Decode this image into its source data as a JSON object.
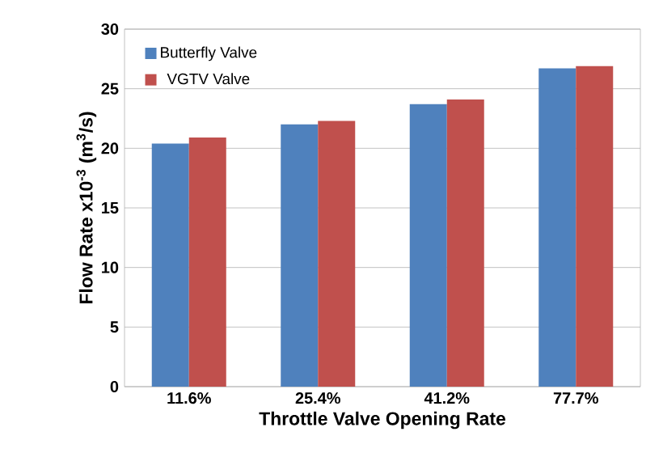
{
  "chart_data": {
    "type": "bar",
    "xlabel": "Throttle Valve Opening Rate",
    "ylabel": "Flow Rate x10$^{-3}$ (m$^{3}$/s)",
    "categories": [
      "11.6%",
      "25.4%",
      "41.2%",
      "77.7%"
    ],
    "series": [
      {
        "name": "Butterfly Valve",
        "color": "#4f81bd",
        "values": [
          20.4,
          22.0,
          23.7,
          26.7
        ]
      },
      {
        "name": "VGTV Valve",
        "color": "#c0504d",
        "values": [
          20.9,
          22.3,
          24.1,
          26.9
        ]
      }
    ],
    "ylim": [
      0,
      30
    ],
    "yticks": [
      0,
      5,
      10,
      15,
      20,
      25,
      30
    ],
    "grid": "y",
    "legend": "top left"
  }
}
